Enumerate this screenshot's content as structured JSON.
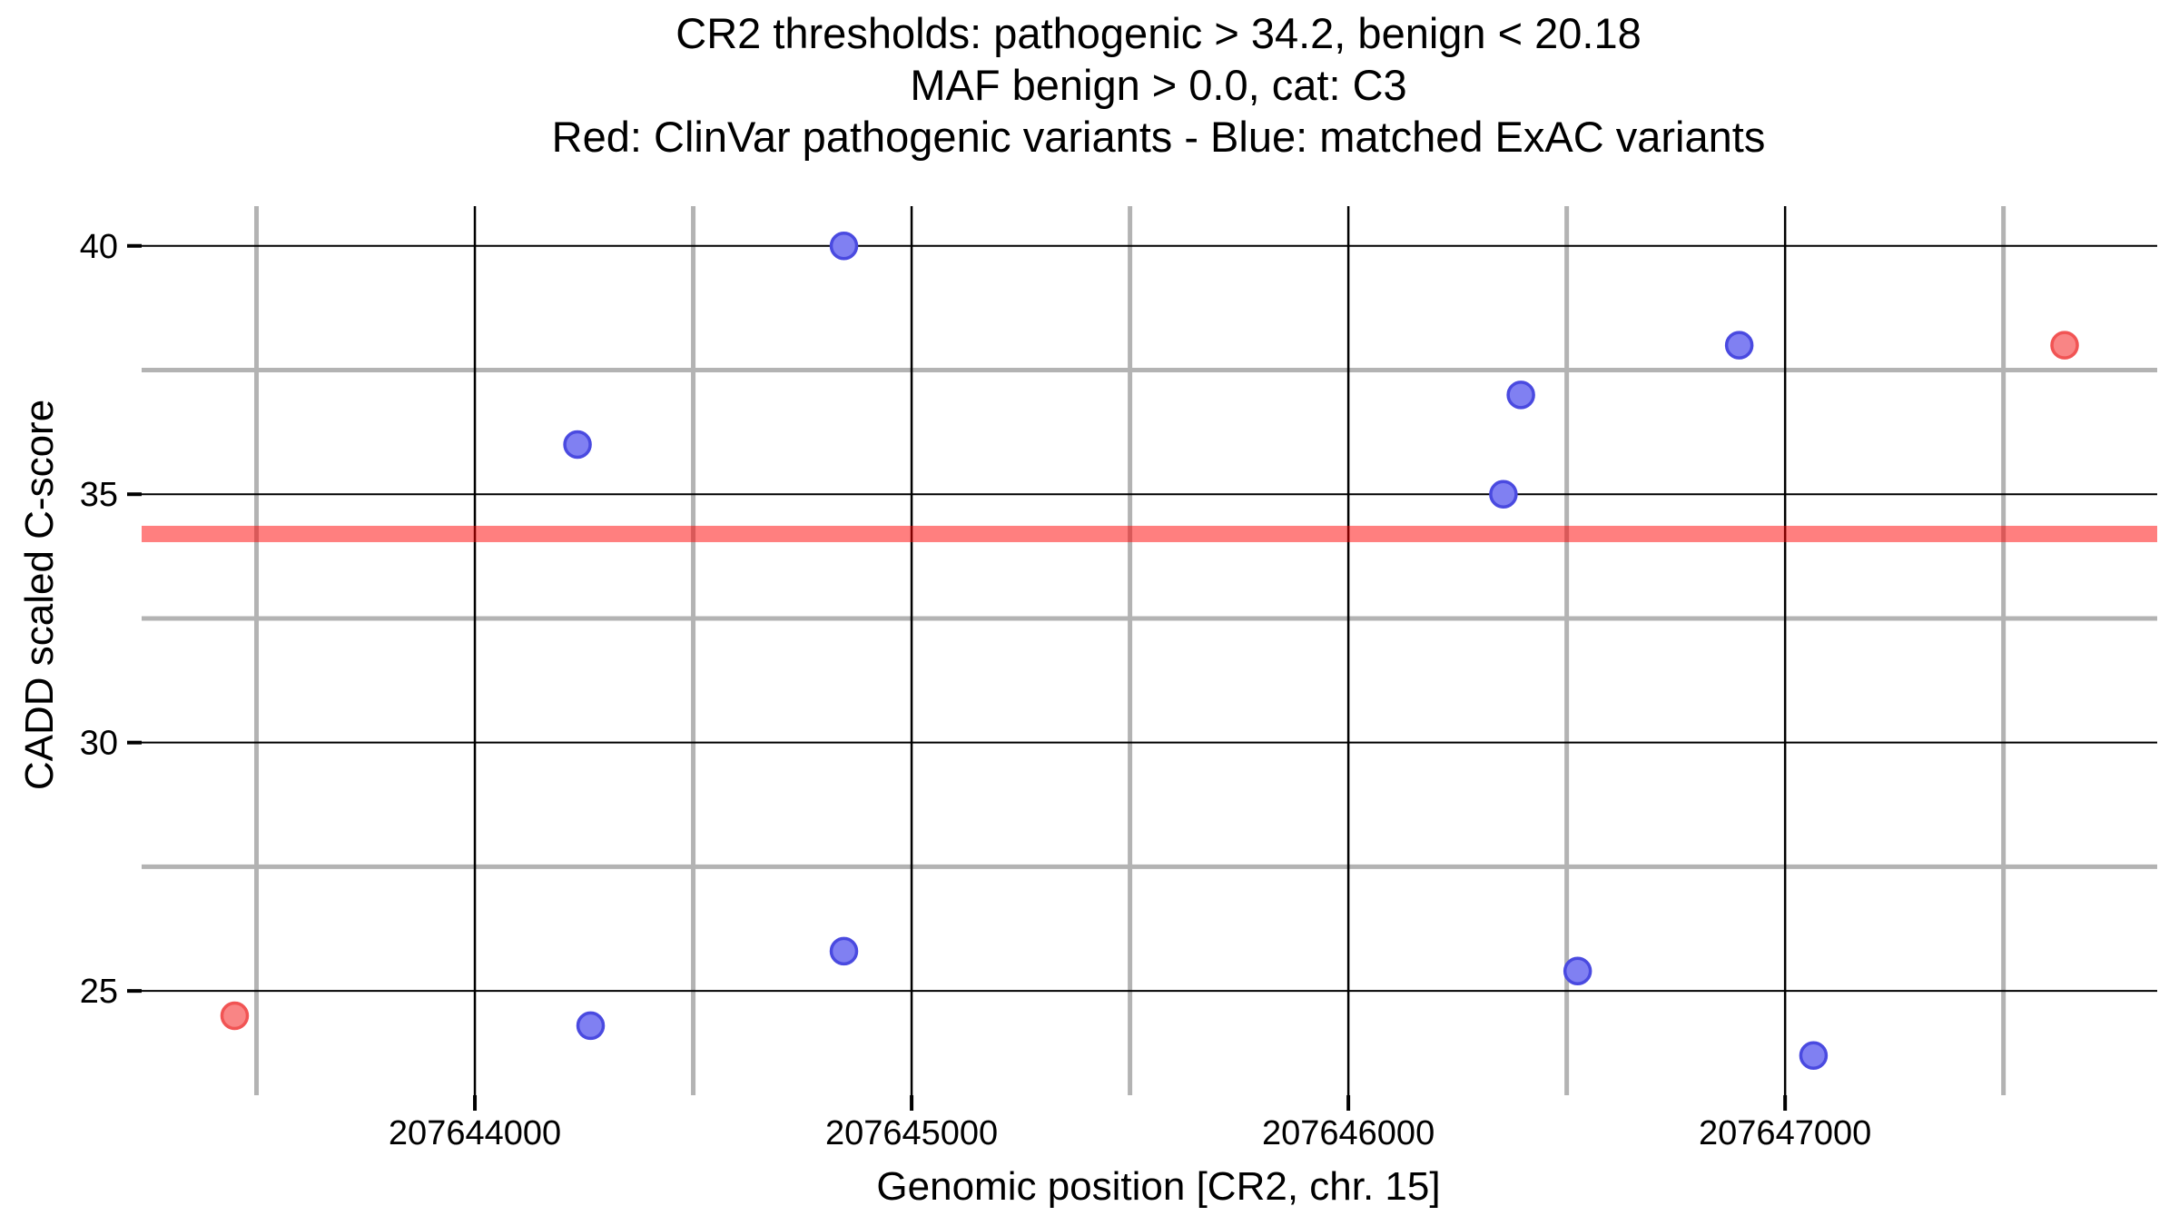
{
  "figure": {
    "background": "#ffffff"
  },
  "chart_data": {
    "type": "scatter",
    "title_lines": [
      "CR2 thresholds: pathogenic > 34.2, benign < 20.18",
      "MAF benign > 0.0, cat: C3",
      "Red: ClinVar pathogenic variants - Blue: matched ExAC variants"
    ],
    "xlabel": "Genomic position [CR2, chr. 15]",
    "ylabel": "CADD scaled C-score",
    "thresholds": {
      "pathogenic_gt": 34.2,
      "benign_lt": 20.18,
      "maf_benign_gt": 0.0,
      "category": "C3"
    },
    "x_axis": {
      "min": 207643237,
      "max": 207647852,
      "major_ticks": [
        207644000,
        207645000,
        207646000,
        207647000
      ],
      "minor_ticks": [
        207643500,
        207644500,
        207645500,
        207646500,
        207647500
      ],
      "tick_labels": [
        "207644000",
        "207645000",
        "207646000",
        "207647000"
      ]
    },
    "y_axis": {
      "min": 22.9,
      "max": 40.8,
      "major_ticks": [
        25,
        30,
        35,
        40
      ],
      "minor_ticks": [
        27.5,
        32.5,
        37.5
      ],
      "tick_labels": [
        "25",
        "30",
        "35",
        "40"
      ]
    },
    "grid": {
      "major_color": "#000000",
      "minor_color": "#b3b3b3",
      "major_width": 2.5,
      "minor_width": 5
    },
    "threshold_band": {
      "y": 34.2,
      "thickness_px": 18,
      "color": "rgba(255,0,0,0.5)",
      "meaning": "CR2 pathogenic threshold line"
    },
    "point_radius": 14,
    "point_stroke_width": 3.5,
    "series": [
      {
        "name": "ClinVar pathogenic variants",
        "fill": "#F98585",
        "stroke": "#F15454",
        "points": [
          [
            207643450,
            24.5
          ],
          [
            207647640,
            38.0
          ]
        ]
      },
      {
        "name": "matched ExAC variants",
        "fill": "#8080F2",
        "stroke": "#4A4AE0",
        "points": [
          [
            207644845,
            40.0
          ],
          [
            207644235,
            36.0
          ],
          [
            207646395,
            37.0
          ],
          [
            207646355,
            35.0
          ],
          [
            207646895,
            38.0
          ],
          [
            207644265,
            24.3
          ],
          [
            207644845,
            25.8
          ],
          [
            207646525,
            25.4
          ],
          [
            207647065,
            23.7
          ]
        ]
      }
    ]
  }
}
